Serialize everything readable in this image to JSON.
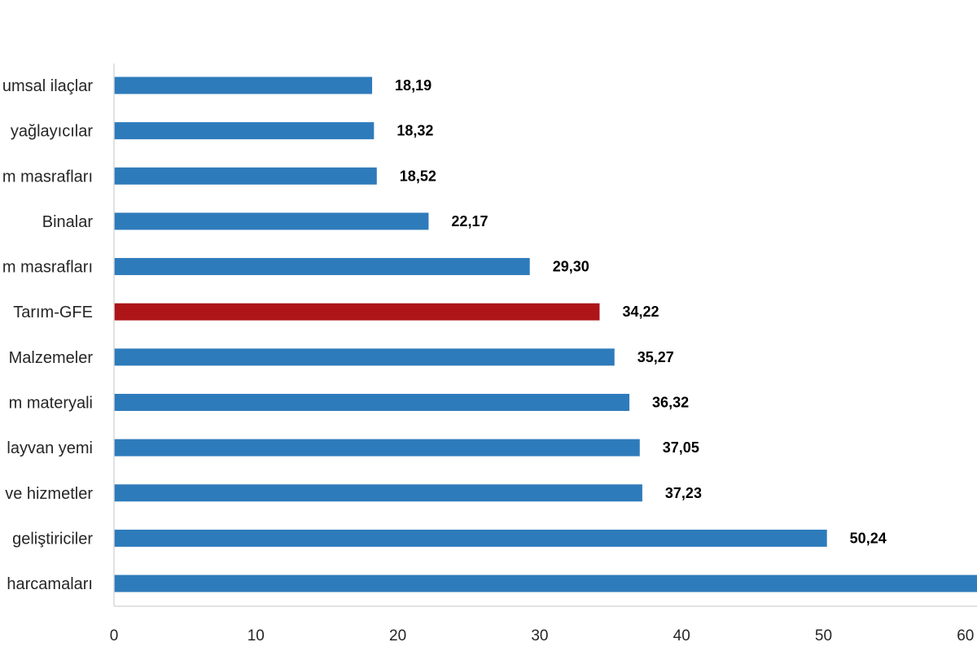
{
  "chart_data": {
    "type": "bar",
    "orientation": "horizontal",
    "categories": [
      "umsal ilaçlar",
      "yağlayıcılar",
      "m masrafları",
      "Binalar",
      "m masrafları",
      "Tarım-GFE",
      "Malzemeler",
      "m materyali",
      "layvan yemi",
      "ve hizmetler",
      "geliştiriciler",
      "harcamaları"
    ],
    "values": [
      18.19,
      18.32,
      18.52,
      22.17,
      29.3,
      34.22,
      35.27,
      36.32,
      37.05,
      37.23,
      50.24,
      null
    ],
    "value_labels": [
      "18,19",
      "18,32",
      "18,52",
      "22,17",
      "29,30",
      "34,22",
      "35,27",
      "36,32",
      "37,05",
      "37,23",
      "50,24",
      ""
    ],
    "last_bar_extends_beyond": 60,
    "highlight_category": "Tarım-GFE",
    "xlim": [
      0,
      60
    ],
    "x_ticks": [
      "0",
      "10",
      "20",
      "30",
      "40",
      "50",
      "60"
    ],
    "title": "",
    "xlabel": "",
    "ylabel": "",
    "grid": false,
    "legend": "none"
  },
  "colors": {
    "bar": "#2e7bbb",
    "highlight": "#ad1519",
    "axis": "#d9d9d9"
  }
}
